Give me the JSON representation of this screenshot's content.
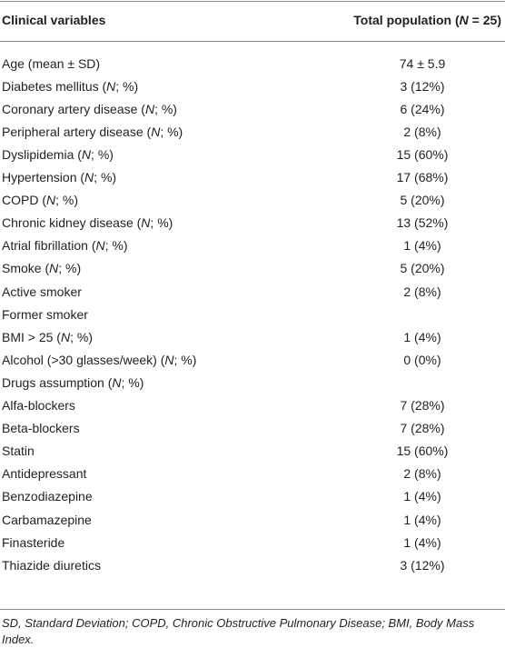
{
  "table": {
    "header": [
      "Clinical variables",
      "Total population (N = 25)"
    ],
    "rows": [
      [
        "Age (mean ± SD)",
        "74 ± 5.9"
      ],
      [
        "Diabetes mellitus (N; %)",
        "3 (12%)"
      ],
      [
        "Coronary artery disease (N; %)",
        "6 (24%)"
      ],
      [
        "Peripheral artery disease (N; %)",
        "2 (8%)"
      ],
      [
        "Dyslipidemia (N; %)",
        "15 (60%)"
      ],
      [
        "Hypertension (N; %)",
        "17 (68%)"
      ],
      [
        "COPD (N; %)",
        "5 (20%)"
      ],
      [
        "Chronic kidney disease (N; %)",
        "13 (52%)"
      ],
      [
        "Atrial fibrillation (N; %)",
        "1 (4%)"
      ],
      [
        "Smoke (N; %)",
        "5 (20%)"
      ],
      [
        "Active smoker",
        "2 (8%)"
      ],
      [
        "Former smoker",
        null
      ],
      [
        "BMI > 25 (N; %)",
        "1 (4%)"
      ],
      [
        "Alcohol (>30 glasses/week) (N; %)",
        "0 (0%)"
      ],
      [
        "Drugs assumption (N; %)",
        null
      ],
      [
        "Alfa-blockers",
        "7 (28%)"
      ],
      [
        "Beta-blockers",
        "7 (28%)"
      ],
      [
        "Statin",
        "15 (60%)"
      ],
      [
        "Antidepressant",
        "2 (8%)"
      ],
      [
        "Benzodiazepine",
        "1 (4%)"
      ],
      [
        "Carbamazepine",
        "1 (4%)"
      ],
      [
        "Finasteride",
        "1 (4%)"
      ],
      [
        "Thiazide diuretics",
        "3 (12%)"
      ]
    ],
    "footnote": "SD, Standard Deviation; COPD, Chronic Obstructive Pulmonary Disease; BMI, Body Mass Index."
  }
}
